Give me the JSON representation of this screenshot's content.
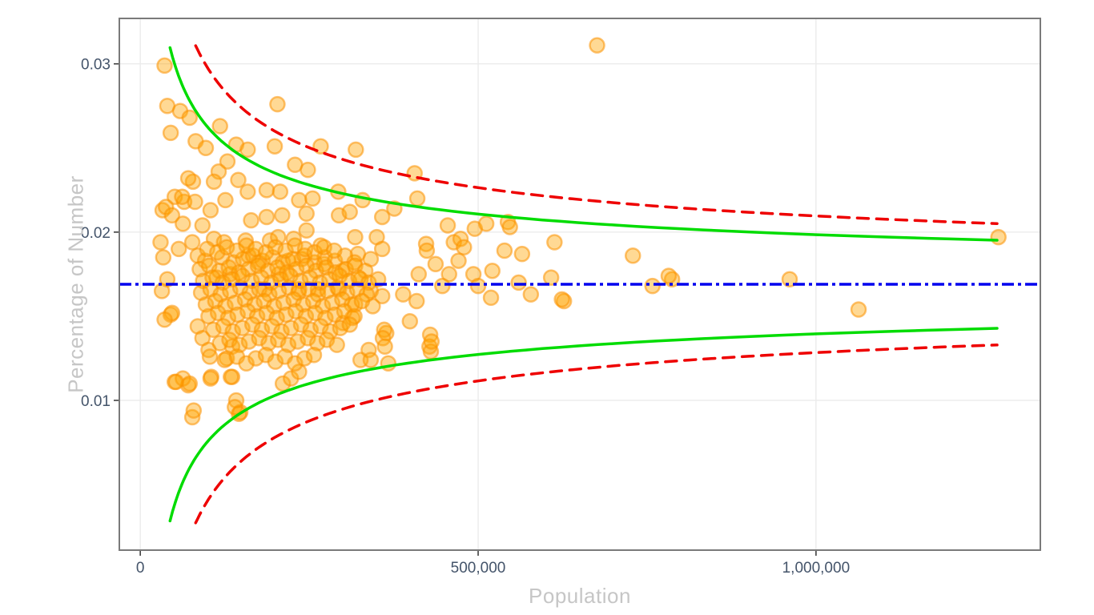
{
  "style": {
    "background": "#ffffff",
    "panel_border_color": "#7a7a7a",
    "grid_color": "#ebebeb",
    "tick_mark_color": "#3f3f3f",
    "tick_label_color": "#44546A",
    "axis_title_color": "#c6c6c6"
  },
  "chart_data": {
    "type": "scatter",
    "title": "",
    "xlabel": "Population",
    "ylabel": "Percentage of Number",
    "grid": true,
    "legend": "none",
    "x_domain": [
      -31000,
      1332000
    ],
    "y_domain": [
      0.0011,
      0.0327
    ],
    "x_ticks": [
      {
        "value": 0,
        "label": "0"
      },
      {
        "value": 500000,
        "label": "500,000"
      },
      {
        "value": 1000000,
        "label": "1,000,000"
      }
    ],
    "y_ticks": [
      {
        "value": 0.01,
        "label": "0.01"
      },
      {
        "value": 0.02,
        "label": "0.02"
      },
      {
        "value": 0.03,
        "label": "0.03"
      }
    ],
    "mean_line": {
      "value": 0.0169,
      "color": "#0000EE",
      "dash": "15,5,4,5",
      "width": 3.5,
      "name": "mean-line"
    },
    "control_limits": [
      {
        "name": "inner-control-limit-95",
        "color": "#00DC00",
        "dash": "",
        "width": 3.5,
        "k": 2.95,
        "n_min": 44000,
        "n_max": 1268000
      },
      {
        "name": "outer-control-limit-998",
        "color": "#EE0000",
        "dash": "14,10",
        "width": 3.5,
        "k": 4.06,
        "n_min": 82000,
        "n_max": 1268000
      }
    ],
    "points_style": {
      "fill": "#FFA500",
      "fill_opacity": 0.42,
      "stroke": "#FC9200",
      "stroke_opacity": 0.55,
      "radius": 9,
      "stroke_width": 2.5
    },
    "points": [
      [
        36000,
        0.0299
      ],
      [
        40000,
        0.0275
      ],
      [
        59000,
        0.0272
      ],
      [
        73000,
        0.0268
      ],
      [
        45000,
        0.0259
      ],
      [
        118000,
        0.0263
      ],
      [
        82000,
        0.0254
      ],
      [
        97000,
        0.025
      ],
      [
        203000,
        0.0276
      ],
      [
        199000,
        0.0251
      ],
      [
        142000,
        0.0252
      ],
      [
        159000,
        0.0249
      ],
      [
        267000,
        0.0251
      ],
      [
        319000,
        0.0249
      ],
      [
        129000,
        0.0242
      ],
      [
        116000,
        0.0236
      ],
      [
        229000,
        0.024
      ],
      [
        248000,
        0.0237
      ],
      [
        78000,
        0.023
      ],
      [
        109000,
        0.023
      ],
      [
        145000,
        0.0231
      ],
      [
        126000,
        0.0219
      ],
      [
        51000,
        0.0221
      ],
      [
        65000,
        0.0218
      ],
      [
        33000,
        0.0213
      ],
      [
        159000,
        0.0224
      ],
      [
        187000,
        0.0225
      ],
      [
        207000,
        0.0224
      ],
      [
        235000,
        0.0219
      ],
      [
        255000,
        0.022
      ],
      [
        293000,
        0.0224
      ],
      [
        329000,
        0.0219
      ],
      [
        71000,
        0.0232
      ],
      [
        38000,
        0.0215
      ],
      [
        47000,
        0.021
      ],
      [
        62000,
        0.0221
      ],
      [
        81000,
        0.0218
      ],
      [
        406000,
        0.0235
      ],
      [
        410000,
        0.022
      ],
      [
        376000,
        0.0214
      ],
      [
        455000,
        0.0204
      ],
      [
        495000,
        0.0202
      ],
      [
        512000,
        0.0205
      ],
      [
        544000,
        0.0206
      ],
      [
        547000,
        0.0203
      ],
      [
        676000,
        0.0311
      ],
      [
        358000,
        0.0209
      ],
      [
        294000,
        0.021
      ],
      [
        310000,
        0.0212
      ],
      [
        246000,
        0.0211
      ],
      [
        210000,
        0.021
      ],
      [
        187000,
        0.0209
      ],
      [
        164000,
        0.0207
      ],
      [
        104000,
        0.0213
      ],
      [
        92000,
        0.0204
      ],
      [
        63000,
        0.0205
      ],
      [
        30000,
        0.0194
      ],
      [
        57000,
        0.019
      ],
      [
        85000,
        0.0186
      ],
      [
        77000,
        0.0194
      ],
      [
        109000,
        0.0196
      ],
      [
        124000,
        0.0194
      ],
      [
        156000,
        0.0195
      ],
      [
        160000,
        0.0186
      ],
      [
        192000,
        0.0195
      ],
      [
        204000,
        0.0197
      ],
      [
        227000,
        0.0196
      ],
      [
        246000,
        0.0201
      ],
      [
        267000,
        0.0192
      ],
      [
        318000,
        0.0197
      ],
      [
        322000,
        0.0187
      ],
      [
        341000,
        0.0184
      ],
      [
        350000,
        0.0197
      ],
      [
        358000,
        0.019
      ],
      [
        464000,
        0.0194
      ],
      [
        474000,
        0.0196
      ],
      [
        479000,
        0.0191
      ],
      [
        423000,
        0.0193
      ],
      [
        424000,
        0.0189
      ],
      [
        539000,
        0.0189
      ],
      [
        565000,
        0.0187
      ],
      [
        613000,
        0.0194
      ],
      [
        729000,
        0.0186
      ],
      [
        961000,
        0.0172
      ],
      [
        787000,
        0.0172
      ],
      [
        758000,
        0.0168
      ],
      [
        782000,
        0.0174
      ],
      [
        1270000,
        0.0197
      ],
      [
        133000,
        0.0175
      ],
      [
        113000,
        0.0173
      ],
      [
        175000,
        0.0182
      ],
      [
        272000,
        0.0181
      ],
      [
        239000,
        0.0184
      ],
      [
        219000,
        0.0183
      ],
      [
        205000,
        0.0175
      ],
      [
        184000,
        0.0166
      ],
      [
        235000,
        0.0166
      ],
      [
        263000,
        0.0166
      ],
      [
        299000,
        0.0177
      ],
      [
        326000,
        0.0172
      ],
      [
        294000,
        0.0166
      ],
      [
        341000,
        0.0165
      ],
      [
        358000,
        0.0162
      ],
      [
        412000,
        0.0175
      ],
      [
        457000,
        0.0175
      ],
      [
        493000,
        0.0175
      ],
      [
        608000,
        0.0173
      ],
      [
        389000,
        0.0163
      ],
      [
        409000,
        0.0159
      ],
      [
        519000,
        0.0161
      ],
      [
        578000,
        0.0163
      ],
      [
        627000,
        0.0159
      ],
      [
        1063000,
        0.0154
      ],
      [
        399000,
        0.0147
      ],
      [
        429000,
        0.0139
      ],
      [
        428000,
        0.0132
      ],
      [
        430000,
        0.0129
      ],
      [
        364000,
        0.014
      ],
      [
        300000,
        0.0146
      ],
      [
        314000,
        0.0149
      ],
      [
        318000,
        0.0157
      ],
      [
        344000,
        0.0156
      ],
      [
        361000,
        0.0142
      ],
      [
        359000,
        0.0137
      ],
      [
        362000,
        0.0132
      ],
      [
        338000,
        0.013
      ],
      [
        326000,
        0.0124
      ],
      [
        341000,
        0.0124
      ],
      [
        367000,
        0.0122
      ],
      [
        431000,
        0.0135
      ],
      [
        624000,
        0.016
      ],
      [
        45000,
        0.0151
      ],
      [
        85000,
        0.0144
      ],
      [
        92000,
        0.0137
      ],
      [
        101000,
        0.013
      ],
      [
        136000,
        0.0132
      ],
      [
        47000,
        0.0152
      ],
      [
        51000,
        0.0111
      ],
      [
        71000,
        0.0109
      ],
      [
        105000,
        0.0114
      ],
      [
        77000,
        0.009
      ],
      [
        136000,
        0.0114
      ],
      [
        142000,
        0.01
      ],
      [
        148000,
        0.0093
      ],
      [
        63000,
        0.0113
      ],
      [
        79000,
        0.0094
      ],
      [
        53000,
        0.0111
      ],
      [
        73000,
        0.011
      ],
      [
        103000,
        0.0126
      ],
      [
        104000,
        0.0113
      ],
      [
        134000,
        0.0114
      ],
      [
        140000,
        0.0096
      ],
      [
        146000,
        0.0092
      ],
      [
        211000,
        0.011
      ],
      [
        223000,
        0.0113
      ],
      [
        235000,
        0.0117
      ],
      [
        128000,
        0.0125
      ],
      [
        96000,
        0.0183
      ],
      [
        121000,
        0.0185
      ],
      [
        138000,
        0.0182
      ],
      [
        152000,
        0.0184
      ],
      [
        167000,
        0.0186
      ],
      [
        181000,
        0.0183
      ],
      [
        196000,
        0.0185
      ],
      [
        211000,
        0.0182
      ],
      [
        226000,
        0.0184
      ],
      [
        243000,
        0.0186
      ],
      [
        258000,
        0.0182
      ],
      [
        273000,
        0.0185
      ],
      [
        288000,
        0.0183
      ],
      [
        303000,
        0.0186
      ],
      [
        317000,
        0.0182
      ],
      [
        88000,
        0.0178
      ],
      [
        102000,
        0.018
      ],
      [
        117000,
        0.0177
      ],
      [
        131000,
        0.0179
      ],
      [
        146000,
        0.0176
      ],
      [
        160000,
        0.0178
      ],
      [
        174000,
        0.018
      ],
      [
        189000,
        0.0177
      ],
      [
        203000,
        0.0179
      ],
      [
        217000,
        0.0176
      ],
      [
        231000,
        0.0178
      ],
      [
        246000,
        0.018
      ],
      [
        260000,
        0.0177
      ],
      [
        275000,
        0.0179
      ],
      [
        289000,
        0.0176
      ],
      [
        304000,
        0.0178
      ],
      [
        318000,
        0.018
      ],
      [
        333000,
        0.0177
      ],
      [
        93000,
        0.0171
      ],
      [
        107000,
        0.0173
      ],
      [
        122000,
        0.017
      ],
      [
        136000,
        0.0172
      ],
      [
        151000,
        0.0174
      ],
      [
        165000,
        0.0171
      ],
      [
        179000,
        0.0173
      ],
      [
        194000,
        0.017
      ],
      [
        208000,
        0.0172
      ],
      [
        222000,
        0.0174
      ],
      [
        237000,
        0.0171
      ],
      [
        251000,
        0.0173
      ],
      [
        266000,
        0.017
      ],
      [
        280000,
        0.0172
      ],
      [
        295000,
        0.0174
      ],
      [
        309000,
        0.0171
      ],
      [
        323000,
        0.0173
      ],
      [
        338000,
        0.017
      ],
      [
        352000,
        0.0172
      ],
      [
        90000,
        0.0164
      ],
      [
        104000,
        0.0166
      ],
      [
        119000,
        0.0163
      ],
      [
        133000,
        0.0165
      ],
      [
        148000,
        0.0167
      ],
      [
        162000,
        0.0164
      ],
      [
        176000,
        0.0166
      ],
      [
        191000,
        0.0163
      ],
      [
        205000,
        0.0165
      ],
      [
        220000,
        0.0167
      ],
      [
        234000,
        0.0164
      ],
      [
        249000,
        0.0166
      ],
      [
        263000,
        0.0163
      ],
      [
        277000,
        0.0165
      ],
      [
        292000,
        0.0167
      ],
      [
        306000,
        0.0164
      ],
      [
        321000,
        0.0166
      ],
      [
        335000,
        0.0163
      ],
      [
        97000,
        0.0157
      ],
      [
        111000,
        0.0159
      ],
      [
        126000,
        0.0156
      ],
      [
        140000,
        0.0158
      ],
      [
        155000,
        0.016
      ],
      [
        169000,
        0.0157
      ],
      [
        183000,
        0.0159
      ],
      [
        198000,
        0.0156
      ],
      [
        212000,
        0.0158
      ],
      [
        227000,
        0.016
      ],
      [
        241000,
        0.0157
      ],
      [
        256000,
        0.0159
      ],
      [
        270000,
        0.0156
      ],
      [
        284000,
        0.0158
      ],
      [
        299000,
        0.016
      ],
      [
        313000,
        0.0157
      ],
      [
        328000,
        0.0159
      ],
      [
        101000,
        0.015
      ],
      [
        115000,
        0.0152
      ],
      [
        130000,
        0.0149
      ],
      [
        144000,
        0.0151
      ],
      [
        159000,
        0.0153
      ],
      [
        173000,
        0.015
      ],
      [
        187000,
        0.0152
      ],
      [
        202000,
        0.0149
      ],
      [
        216000,
        0.0151
      ],
      [
        230000,
        0.0153
      ],
      [
        245000,
        0.015
      ],
      [
        259000,
        0.0152
      ],
      [
        274000,
        0.0149
      ],
      [
        288000,
        0.0151
      ],
      [
        302000,
        0.0153
      ],
      [
        317000,
        0.015
      ],
      [
        108000,
        0.0142
      ],
      [
        123000,
        0.0144
      ],
      [
        137000,
        0.0141
      ],
      [
        151000,
        0.0143
      ],
      [
        166000,
        0.0145
      ],
      [
        180000,
        0.0142
      ],
      [
        195000,
        0.0144
      ],
      [
        209000,
        0.0141
      ],
      [
        223000,
        0.0143
      ],
      [
        238000,
        0.0145
      ],
      [
        252000,
        0.0142
      ],
      [
        267000,
        0.0144
      ],
      [
        281000,
        0.0141
      ],
      [
        296000,
        0.0143
      ],
      [
        310000,
        0.0145
      ],
      [
        118000,
        0.0134
      ],
      [
        132000,
        0.0136
      ],
      [
        147000,
        0.0133
      ],
      [
        161000,
        0.0135
      ],
      [
        176000,
        0.0137
      ],
      [
        190000,
        0.0134
      ],
      [
        204000,
        0.0136
      ],
      [
        219000,
        0.0133
      ],
      [
        233000,
        0.0135
      ],
      [
        248000,
        0.0137
      ],
      [
        262000,
        0.0134
      ],
      [
        276000,
        0.0136
      ],
      [
        291000,
        0.0133
      ],
      [
        125000,
        0.0124
      ],
      [
        143000,
        0.0126
      ],
      [
        157000,
        0.0122
      ],
      [
        171000,
        0.0125
      ],
      [
        186000,
        0.0127
      ],
      [
        200000,
        0.0123
      ],
      [
        214000,
        0.0126
      ],
      [
        229000,
        0.0122
      ],
      [
        243000,
        0.0125
      ],
      [
        257000,
        0.0127
      ],
      [
        99000,
        0.019
      ],
      [
        114000,
        0.0188
      ],
      [
        128000,
        0.0191
      ],
      [
        143000,
        0.0189
      ],
      [
        157000,
        0.0192
      ],
      [
        171000,
        0.019
      ],
      [
        186000,
        0.0188
      ],
      [
        200000,
        0.0191
      ],
      [
        215000,
        0.0189
      ],
      [
        229000,
        0.0192
      ],
      [
        244000,
        0.019
      ],
      [
        258000,
        0.0188
      ],
      [
        272000,
        0.0191
      ],
      [
        287000,
        0.0189
      ],
      [
        32000,
        0.0165
      ],
      [
        36000,
        0.0148
      ],
      [
        40000,
        0.0172
      ],
      [
        34000,
        0.0185
      ],
      [
        447000,
        0.0168
      ],
      [
        437000,
        0.0181
      ],
      [
        500000,
        0.0168
      ],
      [
        471000,
        0.0183
      ],
      [
        521000,
        0.0177
      ],
      [
        560000,
        0.017
      ]
    ]
  }
}
